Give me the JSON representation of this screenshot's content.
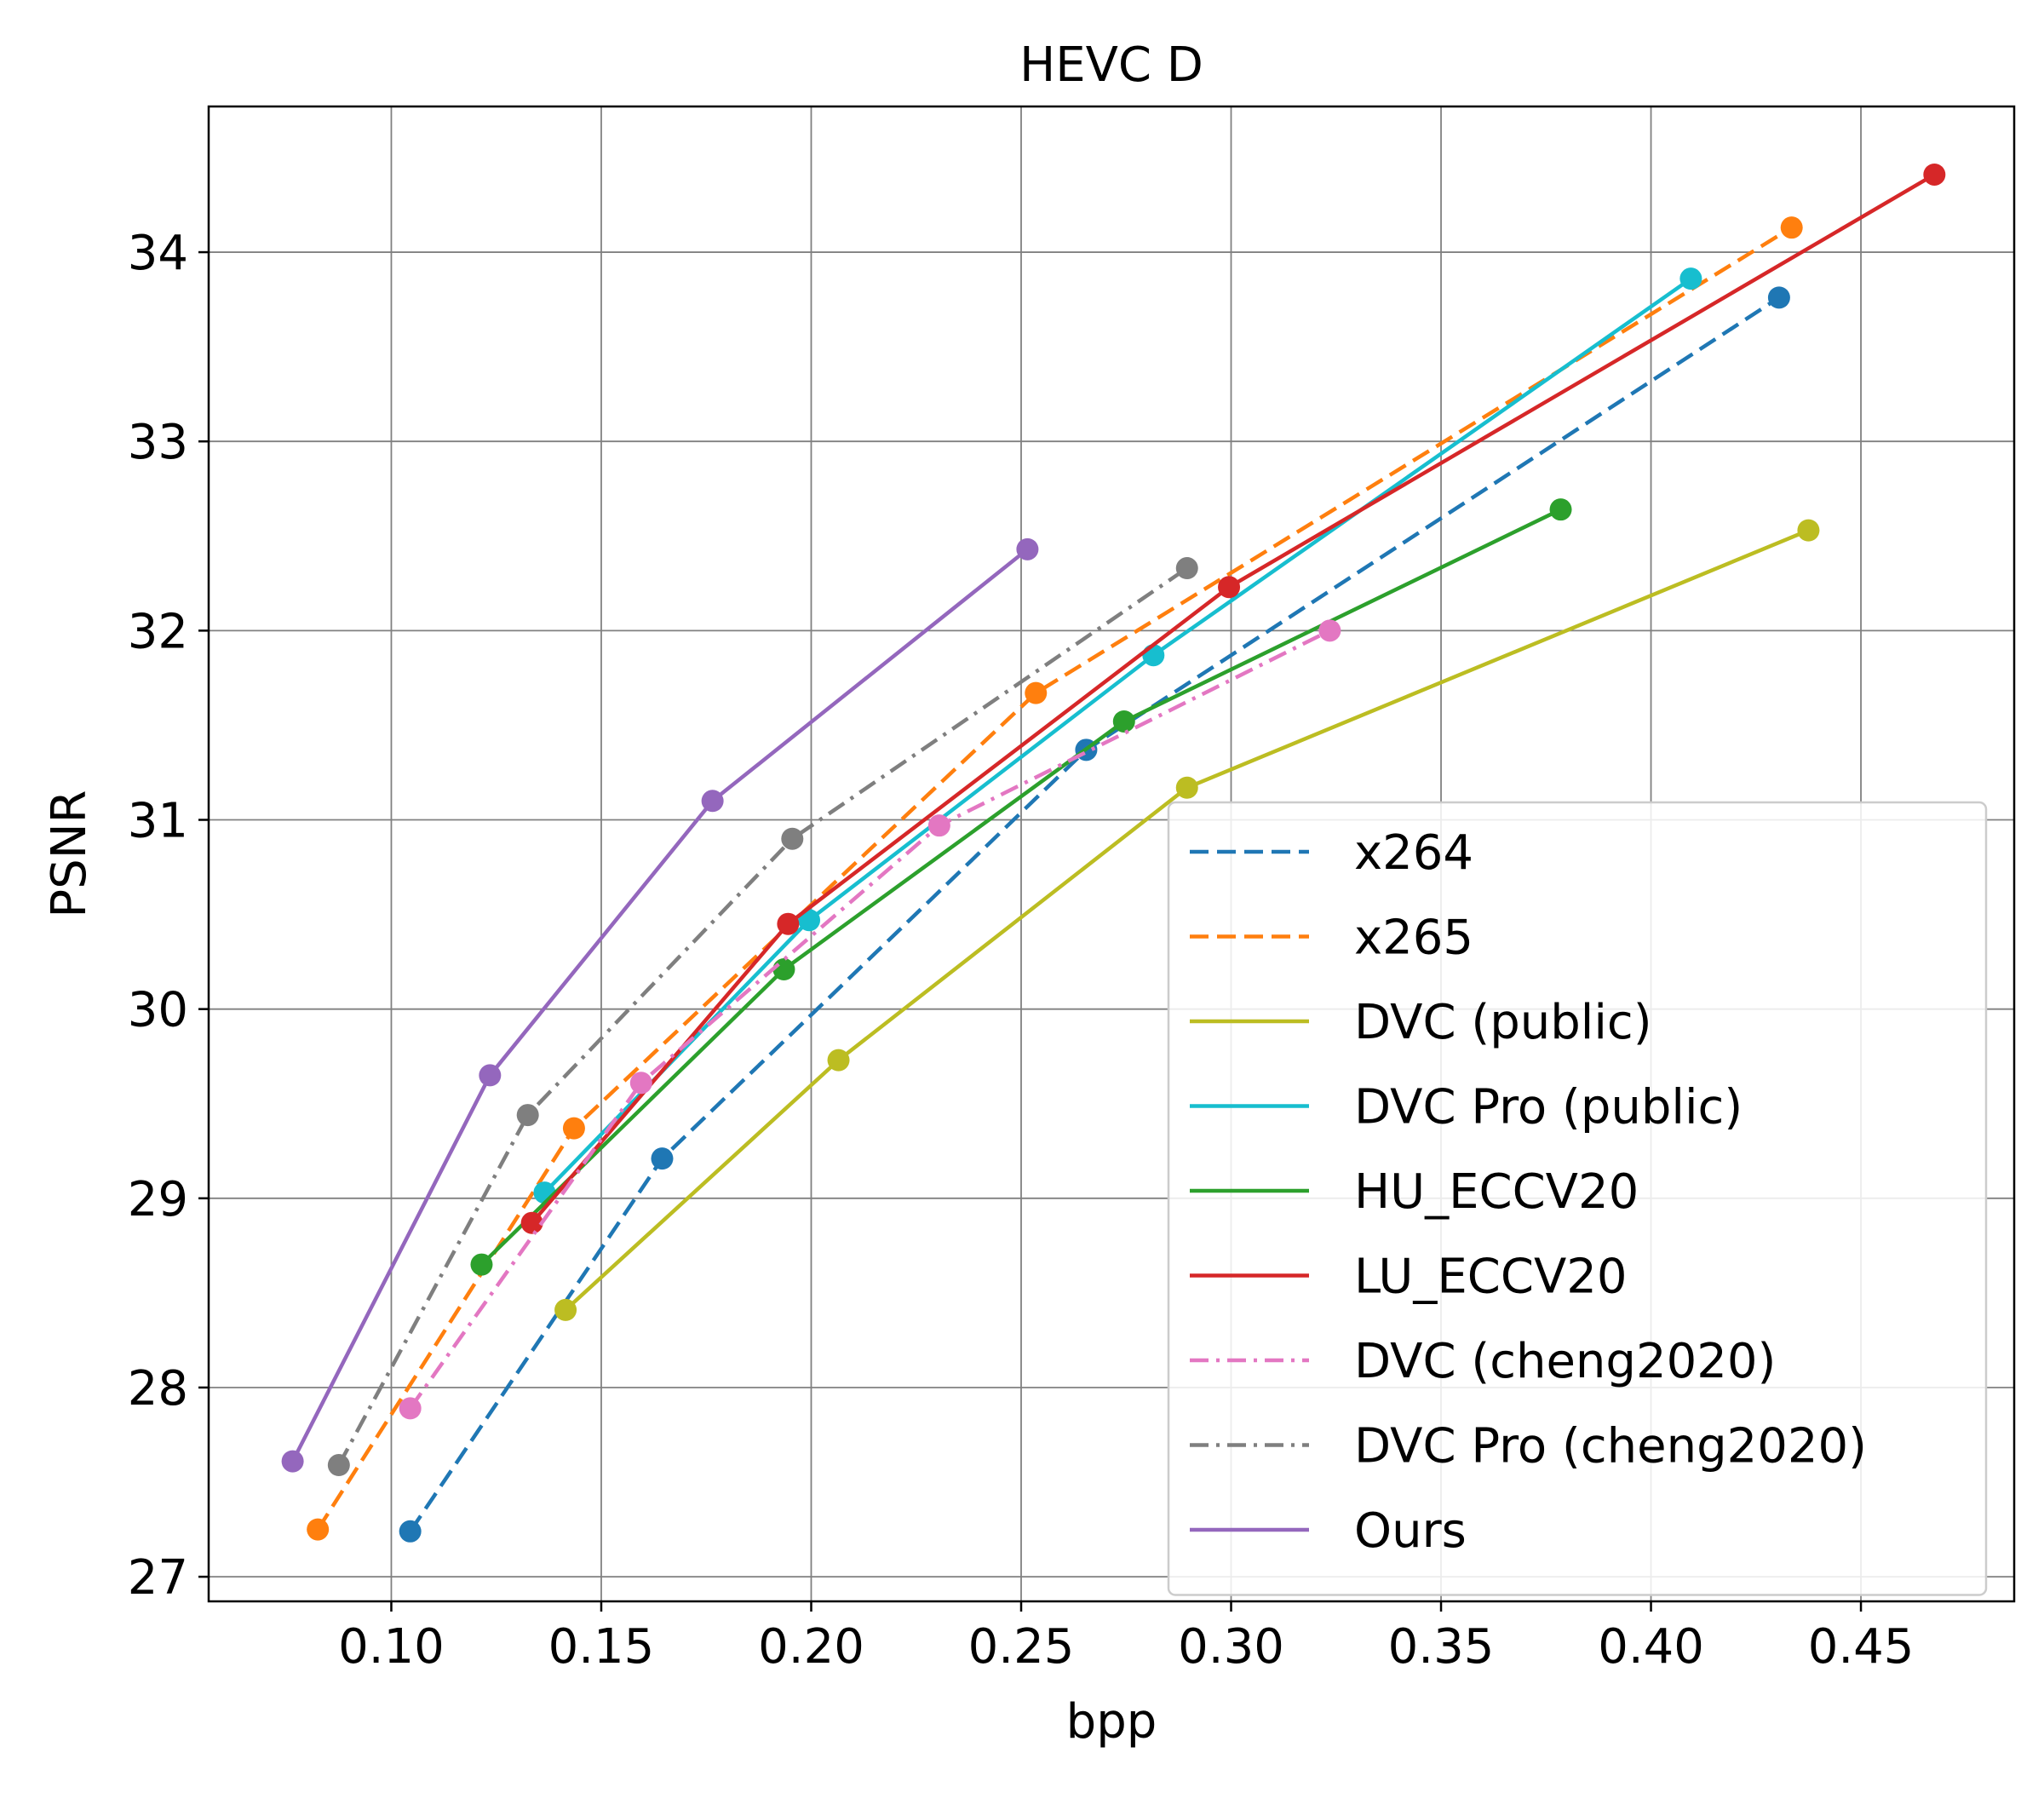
{
  "chart_data": {
    "type": "line",
    "title": "HEVC D",
    "xlabel": "bpp",
    "ylabel": "PSNR",
    "xlim": [
      0.0565,
      0.4865
    ],
    "ylim": [
      26.87,
      34.77
    ],
    "xticks": [
      0.1,
      0.15,
      0.2,
      0.25,
      0.3,
      0.35,
      0.4,
      0.45
    ],
    "xtick_labels": [
      "0.10",
      "0.15",
      "0.20",
      "0.25",
      "0.30",
      "0.35",
      "0.40",
      "0.45"
    ],
    "yticks": [
      27,
      28,
      29,
      30,
      31,
      32,
      33,
      34
    ],
    "ytick_labels": [
      "27",
      "28",
      "29",
      "30",
      "31",
      "32",
      "33",
      "34"
    ],
    "grid": true,
    "legend_position": "bottom-right",
    "series": [
      {
        "name": "x264",
        "color": "#1f77b4",
        "dash": "dashed",
        "x": [
          0.1045,
          0.1645,
          0.2655,
          0.4305
        ],
        "y": [
          27.24,
          29.21,
          31.37,
          33.76
        ]
      },
      {
        "name": "x265",
        "color": "#ff7f0e",
        "dash": "dashed",
        "x": [
          0.0825,
          0.1435,
          0.2535,
          0.4335
        ],
        "y": [
          27.25,
          29.37,
          31.67,
          34.13
        ]
      },
      {
        "name": "DVC (public)",
        "color": "#bcbd22",
        "dash": "solid",
        "x": [
          0.1415,
          0.2065,
          0.2895,
          0.4375
        ],
        "y": [
          28.41,
          29.73,
          31.17,
          32.53
        ]
      },
      {
        "name": "DVC Pro (public)",
        "color": "#17becf",
        "dash": "solid",
        "x": [
          0.1365,
          0.1995,
          0.2815,
          0.4095
        ],
        "y": [
          29.03,
          30.47,
          31.87,
          33.86
        ]
      },
      {
        "name": "HU_ECCV20",
        "color": "#2ca02c",
        "dash": "solid",
        "x": [
          0.1215,
          0.1935,
          0.2745,
          0.3785
        ],
        "y": [
          28.65,
          30.21,
          31.52,
          32.64
        ]
      },
      {
        "name": "LU_ECCV20",
        "color": "#d62728",
        "dash": "solid",
        "x": [
          0.1335,
          0.1945,
          0.2995,
          0.4675
        ],
        "y": [
          28.87,
          30.45,
          32.23,
          34.41
        ]
      },
      {
        "name": "DVC (cheng2020)",
        "color": "#e377c2",
        "dash": "dashdot",
        "x": [
          0.1045,
          0.1595,
          0.2305,
          0.3235
        ],
        "y": [
          27.89,
          29.61,
          30.97,
          32.0
        ]
      },
      {
        "name": "DVC Pro (cheng2020)",
        "color": "#7f7f7f",
        "dash": "dashdot",
        "x": [
          0.0875,
          0.1325,
          0.1955,
          0.2895
        ],
        "y": [
          27.59,
          29.44,
          30.9,
          32.33
        ]
      },
      {
        "name": "Ours",
        "color": "#9467bd",
        "dash": "solid",
        "x": [
          0.0765,
          0.1235,
          0.1765,
          0.2515
        ],
        "y": [
          27.61,
          29.65,
          31.1,
          32.43
        ]
      }
    ]
  }
}
